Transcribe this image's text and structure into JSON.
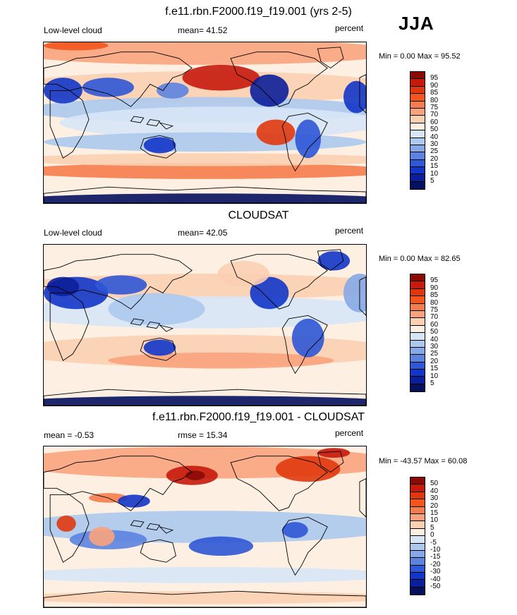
{
  "season": "JJA",
  "panels": [
    {
      "title": "f.e11.rbn.F2000.f19_f19.001 (yrs 2-5)",
      "left_label": "Low-level cloud",
      "center_label": "mean=  41.52",
      "right_label": "percent",
      "minmax": "Min =   0.00 Max =  95.52",
      "levels": [
        "95",
        "90",
        "85",
        "80",
        "75",
        "70",
        "60",
        "50",
        "40",
        "30",
        "25",
        "20",
        "15",
        "10",
        "5"
      ],
      "colors": [
        "#8b0a06",
        "#c51a0c",
        "#e0380e",
        "#f3551f",
        "#f57c4e",
        "#f9a37e",
        "#fbcfb1",
        "#fdf0e2",
        "#d7e6f6",
        "#adc9ee",
        "#86a8e6",
        "#5c83e0",
        "#2f57d6",
        "#1236c8",
        "#0c1f9a",
        "#06105f"
      ],
      "style": "model"
    },
    {
      "title": "CLOUDSAT",
      "left_label": "Low-level cloud",
      "center_label": "mean=  42.05",
      "right_label": "percent",
      "minmax": "Min =   0.00 Max =  82.65",
      "levels": [
        "95",
        "90",
        "85",
        "80",
        "75",
        "70",
        "60",
        "50",
        "40",
        "30",
        "25",
        "20",
        "15",
        "10",
        "5"
      ],
      "colors": [
        "#8b0a06",
        "#c51a0c",
        "#e0380e",
        "#f3551f",
        "#f57c4e",
        "#f9a37e",
        "#fbcfb1",
        "#fdf0e2",
        "#d7e6f6",
        "#adc9ee",
        "#86a8e6",
        "#5c83e0",
        "#2f57d6",
        "#1236c8",
        "#0c1f9a",
        "#06105f"
      ],
      "style": "obs"
    },
    {
      "title": "f.e11.rbn.F2000.f19_f19.001 - CLOUDSAT",
      "left_label": "mean =  -0.53",
      "center_label": "rmse =  15.34",
      "right_label": "percent",
      "minmax": "Min = -43.57 Max =  60.08",
      "levels": [
        "50",
        "40",
        "30",
        "20",
        "15",
        "10",
        "5",
        "0",
        "-5",
        "-10",
        "-15",
        "-20",
        "-30",
        "-40",
        "-50"
      ],
      "colors": [
        "#8b0a06",
        "#c51a0c",
        "#e0380e",
        "#f3551f",
        "#f57c4e",
        "#f9a37e",
        "#fbcfb1",
        "#fdf0e2",
        "#d7e6f6",
        "#adc9ee",
        "#86a8e6",
        "#5c83e0",
        "#2f57d6",
        "#1236c8",
        "#0c1f9a",
        "#06105f"
      ],
      "style": "diff"
    }
  ]
}
